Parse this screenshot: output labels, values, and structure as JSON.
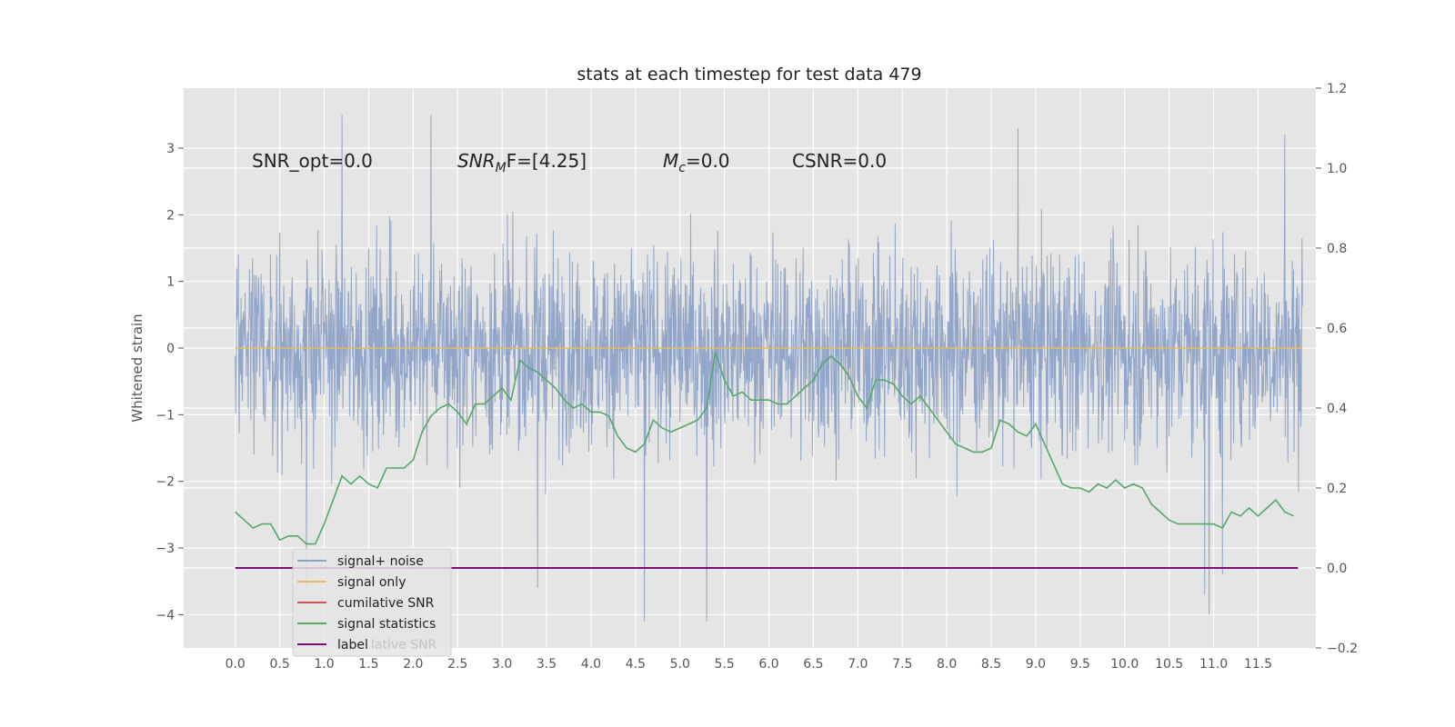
{
  "chart_data": {
    "type": "line",
    "title": "stats at each timestep for test data 479",
    "ylabel": "Whitened strain",
    "xlabel": "",
    "grid": true,
    "x_axis": {
      "ticks": [
        0.0,
        0.5,
        1.0,
        1.5,
        2.0,
        2.5,
        3.0,
        3.5,
        4.0,
        4.5,
        5.0,
        5.5,
        6.0,
        6.5,
        7.0,
        7.5,
        8.0,
        8.5,
        9.0,
        9.5,
        10.0,
        10.5,
        11.0,
        11.5
      ],
      "tick_labels": [
        "0.0",
        "0.5",
        "1.0",
        "1.5",
        "2.0",
        "2.5",
        "3.0",
        "3.5",
        "4.0",
        "4.5",
        "5.0",
        "5.5",
        "6.0",
        "6.5",
        "7.0",
        "7.5",
        "8.0",
        "8.5",
        "9.0",
        "9.5",
        "10.0",
        "10.5",
        "11.0",
        "11.5"
      ],
      "range": [
        -0.58,
        12.15
      ]
    },
    "y_left": {
      "ticks": [
        3,
        2,
        1,
        0,
        -1,
        -2,
        -3,
        -4
      ],
      "tick_labels": [
        "3",
        "2",
        "1",
        "0",
        "−1",
        "−2",
        "−3",
        "−4"
      ],
      "range": [
        -4.5,
        3.9
      ]
    },
    "y_right": {
      "ticks": [
        1.2,
        1.0,
        0.8,
        0.6,
        0.4,
        0.2,
        0.0,
        -0.2
      ],
      "tick_labels": [
        "1.2",
        "1.0",
        "0.8",
        "0.6",
        "0.4",
        "0.2",
        "0.0",
        "−0.2"
      ],
      "range": [
        -0.2,
        1.2
      ]
    },
    "annotations": {
      "snr_opt": "SNR_opt=0.0",
      "snr_mf_main": "SNR",
      "snr_mf_sub": "M",
      "snr_mf_rest": "F=[4.25]",
      "mc_main": "M",
      "mc_sub": "c",
      "mc_rest": "=0.0",
      "csnr": "CSNR=0.0"
    },
    "legend": {
      "placement": "lower-left",
      "entries": [
        "signal+ noise",
        "signal only",
        "cumilative SNR",
        "signal statistics",
        "label"
      ],
      "ghost_text": "lative SNR"
    },
    "series": [
      {
        "name": "signal+ noise",
        "axis": "left",
        "color": "#8da2c7",
        "description": "whitened noise trace, x from 0.0 to 12.0",
        "x_start": 0.0,
        "x_end": 12.0,
        "amplitude_typical": [
          -1.6,
          1.6
        ],
        "extremes": [
          {
            "x": 0.8,
            "y": -3.6
          },
          {
            "x": 1.2,
            "y": 3.5
          },
          {
            "x": 2.2,
            "y": 3.5
          },
          {
            "x": 3.4,
            "y": -3.6
          },
          {
            "x": 4.6,
            "y": -4.1
          },
          {
            "x": 5.3,
            "y": -4.1
          },
          {
            "x": 8.8,
            "y": 3.3
          },
          {
            "x": 10.9,
            "y": -3.7
          },
          {
            "x": 10.95,
            "y": -4.0
          },
          {
            "x": 11.1,
            "y": -3.4
          },
          {
            "x": 11.8,
            "y": 3.2
          }
        ]
      },
      {
        "name": "signal only",
        "axis": "left",
        "color": "#e8bc5c",
        "x": [
          0.0,
          12.0
        ],
        "y": [
          0.0,
          0.0
        ]
      },
      {
        "name": "cumilative SNR",
        "axis": "right",
        "color": "#d9534f",
        "x": [],
        "y": []
      },
      {
        "name": "signal statistics",
        "axis": "right",
        "color": "#55a868",
        "x": [
          0.0,
          0.1,
          0.2,
          0.3,
          0.4,
          0.5,
          0.6,
          0.7,
          0.8,
          0.9,
          1.0,
          1.1,
          1.2,
          1.3,
          1.4,
          1.5,
          1.6,
          1.7,
          1.8,
          1.9,
          2.0,
          2.1,
          2.2,
          2.3,
          2.4,
          2.5,
          2.6,
          2.7,
          2.8,
          2.9,
          3.0,
          3.1,
          3.2,
          3.3,
          3.4,
          3.5,
          3.6,
          3.7,
          3.8,
          3.9,
          4.0,
          4.1,
          4.2,
          4.3,
          4.4,
          4.5,
          4.6,
          4.7,
          4.8,
          4.9,
          5.0,
          5.1,
          5.2,
          5.3,
          5.4,
          5.5,
          5.6,
          5.7,
          5.8,
          5.9,
          6.0,
          6.1,
          6.2,
          6.3,
          6.4,
          6.5,
          6.6,
          6.7,
          6.8,
          6.9,
          7.0,
          7.1,
          7.2,
          7.3,
          7.4,
          7.5,
          7.6,
          7.7,
          7.8,
          7.9,
          8.0,
          8.1,
          8.2,
          8.3,
          8.4,
          8.5,
          8.6,
          8.7,
          8.8,
          8.9,
          9.0,
          9.1,
          9.2,
          9.3,
          9.4,
          9.5,
          9.6,
          9.7,
          9.8,
          9.9,
          10.0,
          10.1,
          10.2,
          10.3,
          10.4,
          10.5,
          10.6,
          10.7,
          10.8,
          10.9,
          11.0,
          11.1,
          11.2,
          11.3,
          11.4,
          11.5,
          11.6,
          11.7,
          11.8,
          11.9
        ],
        "y": [
          0.14,
          0.12,
          0.1,
          0.11,
          0.11,
          0.07,
          0.08,
          0.08,
          0.06,
          0.06,
          0.11,
          0.17,
          0.23,
          0.21,
          0.23,
          0.21,
          0.2,
          0.25,
          0.25,
          0.25,
          0.27,
          0.34,
          0.38,
          0.4,
          0.41,
          0.39,
          0.36,
          0.41,
          0.41,
          0.43,
          0.45,
          0.42,
          0.52,
          0.5,
          0.49,
          0.47,
          0.45,
          0.42,
          0.4,
          0.41,
          0.39,
          0.39,
          0.38,
          0.33,
          0.3,
          0.29,
          0.31,
          0.37,
          0.35,
          0.34,
          0.35,
          0.36,
          0.37,
          0.4,
          0.54,
          0.47,
          0.43,
          0.44,
          0.42,
          0.42,
          0.42,
          0.41,
          0.41,
          0.43,
          0.45,
          0.47,
          0.51,
          0.53,
          0.51,
          0.48,
          0.43,
          0.4,
          0.47,
          0.47,
          0.46,
          0.43,
          0.41,
          0.43,
          0.4,
          0.37,
          0.34,
          0.31,
          0.3,
          0.29,
          0.29,
          0.3,
          0.37,
          0.36,
          0.34,
          0.33,
          0.36,
          0.31,
          0.26,
          0.21,
          0.2,
          0.2,
          0.19,
          0.21,
          0.2,
          0.22,
          0.2,
          0.21,
          0.2,
          0.16,
          0.14,
          0.12,
          0.11,
          0.11,
          0.11,
          0.11,
          0.11,
          0.1,
          0.14,
          0.13,
          0.15,
          0.13,
          0.15,
          0.17,
          0.14,
          0.13
        ]
      },
      {
        "name": "label",
        "axis": "right",
        "color": "#7a0d7a",
        "x": [
          0.0,
          11.95
        ],
        "y": [
          0.0,
          0.0
        ]
      }
    ]
  }
}
